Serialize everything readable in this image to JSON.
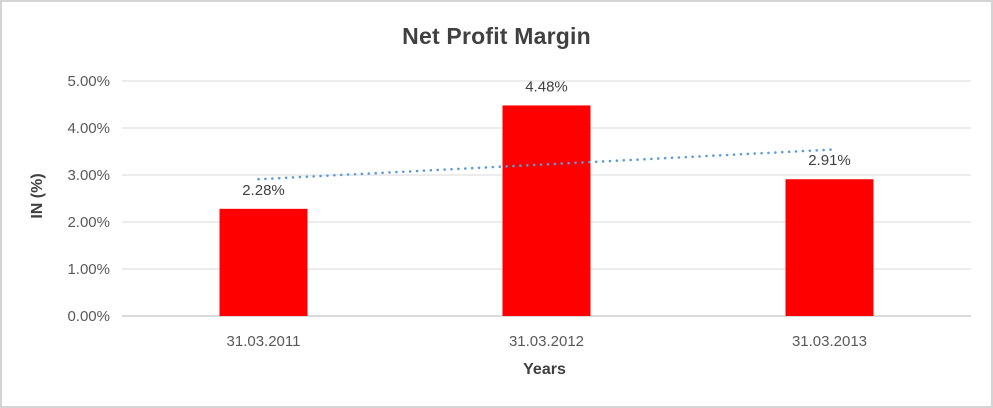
{
  "chart_data": {
    "type": "bar",
    "title": "Net Profit Margin",
    "xlabel": "Years",
    "ylabel": "IN (%)",
    "categories": [
      "31.03.2011",
      "31.03.2012",
      "31.03.2013"
    ],
    "values": [
      2.28,
      4.48,
      2.91
    ],
    "data_labels": [
      "2.28%",
      "4.48%",
      "2.91%"
    ],
    "y_ticks": [
      0,
      1,
      2,
      3,
      4,
      5
    ],
    "y_tick_labels": [
      "0.00%",
      "1.00%",
      "2.00%",
      "3.00%",
      "4.00%",
      "5.00%"
    ],
    "ylim": [
      0,
      5
    ],
    "grid": true,
    "legend": "none",
    "bar_color": "#FF0000",
    "trendline": {
      "type": "linear",
      "style": "dotted",
      "color": "#5B9BD5",
      "start_value": 2.91,
      "end_value": 3.54
    },
    "colors": {
      "title": "#404040",
      "axis_title": "#404040",
      "tick_label": "#595959",
      "data_label": "#404040",
      "gridline": "#D9D9D9",
      "axis_line": "#CDCDCD",
      "background": "#FFFFFF",
      "border": "#D4D4D4"
    }
  }
}
